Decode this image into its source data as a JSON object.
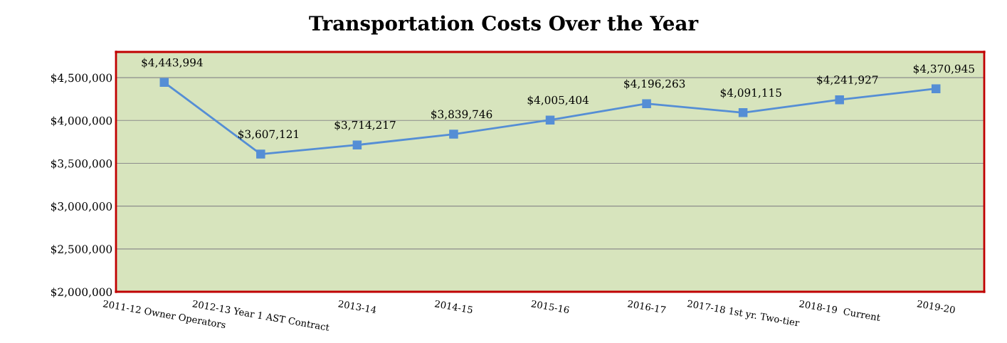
{
  "chart_data": {
    "type": "line",
    "title": "Transportation Costs Over the Year",
    "categories": [
      "2011-12 Owner Operators",
      "2012-13 Year 1 AST Contract",
      "2013-14",
      "2014-15",
      "2015-16",
      "2016-17",
      "2017-18 1st yr. Two-tier",
      "2018-19  Current",
      "2019-20"
    ],
    "series": [
      {
        "color": "#558ed5",
        "values": [
          4443994,
          3607121,
          3714217,
          3839746,
          4005404,
          4196263,
          4091115,
          4241927,
          4370945
        ],
        "value_labels": [
          "$4,443,994",
          "$3,607,121",
          "$3,714,217",
          "$3,839,746",
          "$4,005,404",
          "$4,196,263",
          "$4,091,115",
          "$4,241,927",
          "$4,370,945"
        ]
      }
    ],
    "ylim": [
      2000000,
      4800000
    ],
    "yticks": [
      {
        "value": 2000000,
        "label": "$2,000,000"
      },
      {
        "value": 2500000,
        "label": "$2,500,000"
      },
      {
        "value": 3000000,
        "label": "$3,000,000"
      },
      {
        "value": 3500000,
        "label": "$3,500,000"
      },
      {
        "value": 4000000,
        "label": "$4,000,000"
      },
      {
        "value": 4500000,
        "label": "$4,500,000"
      }
    ],
    "grid": "y",
    "marker": "square",
    "line_style": "solid"
  }
}
